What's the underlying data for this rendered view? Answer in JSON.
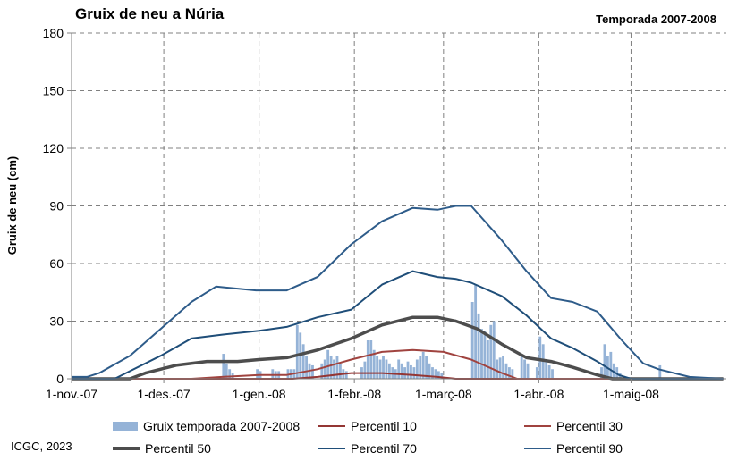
{
  "header": {
    "title": "Gruix de neu a Núria",
    "season": "Temporada 2007-2008"
  },
  "footer": {
    "credit": "ICGC, 2023"
  },
  "colors": {
    "bars": "#95B3D7",
    "p10": "#943634",
    "p30": "#A0433F",
    "p50": "#4D4D4D",
    "p70": "#1F4E79",
    "p90": "#2E5C8A",
    "grid": "#808080"
  },
  "legend": [
    {
      "key": "bars",
      "label": "Gruix temporada 2007-2008",
      "style": "bar"
    },
    {
      "key": "p10",
      "label": "Percentil 10",
      "style": "line"
    },
    {
      "key": "p30",
      "label": "Percentil 30",
      "style": "line"
    },
    {
      "key": "p50",
      "label": "Percentil 50",
      "style": "thick"
    },
    {
      "key": "p70",
      "label": "Percentil 70",
      "style": "line"
    },
    {
      "key": "p90",
      "label": "Percentil 90",
      "style": "line"
    }
  ],
  "chart_data": {
    "type": "bar",
    "title": "Gruix de neu a Núria",
    "subtitle": "Temporada 2007-2008",
    "ylabel": "Gruix de neu (cm)",
    "ylim": [
      0,
      180
    ],
    "yticks": [
      0,
      30,
      60,
      90,
      120,
      150,
      180
    ],
    "x_start": "2007-11-01",
    "x_end": "2008-05-31",
    "xticks": [
      {
        "date": "2007-11-01",
        "label": "1-nov.-07"
      },
      {
        "date": "2007-12-01",
        "label": "1-des.-07"
      },
      {
        "date": "2008-01-01",
        "label": "1-gen.-08"
      },
      {
        "date": "2008-02-01",
        "label": "1-febr.-08"
      },
      {
        "date": "2008-03-01",
        "label": "1-març-08"
      },
      {
        "date": "2008-04-01",
        "label": "1-abr.-08"
      },
      {
        "date": "2008-05-01",
        "label": "1-maig-08"
      }
    ],
    "grid": true,
    "legend_position": "bottom",
    "bar_series": {
      "name": "Gruix temporada 2007-2008",
      "points": [
        [
          "2007-12-20",
          13
        ],
        [
          "2007-12-21",
          8
        ],
        [
          "2007-12-22",
          5
        ],
        [
          "2007-12-23",
          3
        ],
        [
          "2007-12-31",
          5
        ],
        [
          "2008-01-01",
          4
        ],
        [
          "2008-01-05",
          5
        ],
        [
          "2008-01-06",
          4
        ],
        [
          "2008-01-07",
          4
        ],
        [
          "2008-01-10",
          5
        ],
        [
          "2008-01-11",
          5
        ],
        [
          "2008-01-12",
          5
        ],
        [
          "2008-01-13",
          28
        ],
        [
          "2008-01-14",
          24
        ],
        [
          "2008-01-15",
          18
        ],
        [
          "2008-01-16",
          12
        ],
        [
          "2008-01-17",
          8
        ],
        [
          "2008-01-18",
          7
        ],
        [
          "2008-01-21",
          8
        ],
        [
          "2008-01-22",
          10
        ],
        [
          "2008-01-23",
          15
        ],
        [
          "2008-01-24",
          12
        ],
        [
          "2008-01-25",
          10
        ],
        [
          "2008-01-26",
          12
        ],
        [
          "2008-01-27",
          8
        ],
        [
          "2008-01-28",
          5
        ],
        [
          "2008-01-29",
          4
        ],
        [
          "2008-02-03",
          6
        ],
        [
          "2008-02-04",
          9
        ],
        [
          "2008-02-05",
          20
        ],
        [
          "2008-02-06",
          20
        ],
        [
          "2008-02-07",
          15
        ],
        [
          "2008-02-08",
          12
        ],
        [
          "2008-02-09",
          10
        ],
        [
          "2008-02-10",
          12
        ],
        [
          "2008-02-11",
          10
        ],
        [
          "2008-02-12",
          8
        ],
        [
          "2008-02-13",
          6
        ],
        [
          "2008-02-14",
          5
        ],
        [
          "2008-02-15",
          10
        ],
        [
          "2008-02-16",
          8
        ],
        [
          "2008-02-17",
          6
        ],
        [
          "2008-02-18",
          9
        ],
        [
          "2008-02-19",
          7
        ],
        [
          "2008-02-20",
          6
        ],
        [
          "2008-02-21",
          10
        ],
        [
          "2008-02-22",
          12
        ],
        [
          "2008-02-23",
          14
        ],
        [
          "2008-02-24",
          12
        ],
        [
          "2008-02-25",
          8
        ],
        [
          "2008-02-26",
          6
        ],
        [
          "2008-02-27",
          5
        ],
        [
          "2008-02-28",
          4
        ],
        [
          "2008-02-29",
          3
        ],
        [
          "2008-03-10",
          40
        ],
        [
          "2008-03-11",
          49
        ],
        [
          "2008-03-12",
          34
        ],
        [
          "2008-03-13",
          26
        ],
        [
          "2008-03-14",
          25
        ],
        [
          "2008-03-15",
          20
        ],
        [
          "2008-03-16",
          28
        ],
        [
          "2008-03-17",
          30
        ],
        [
          "2008-03-18",
          10
        ],
        [
          "2008-03-19",
          11
        ],
        [
          "2008-03-20",
          12
        ],
        [
          "2008-03-21",
          8
        ],
        [
          "2008-03-22",
          6
        ],
        [
          "2008-03-23",
          5
        ],
        [
          "2008-03-26",
          12
        ],
        [
          "2008-03-27",
          10
        ],
        [
          "2008-03-28",
          8
        ],
        [
          "2008-03-31",
          6
        ],
        [
          "2008-04-01",
          22
        ],
        [
          "2008-04-02",
          18
        ],
        [
          "2008-04-03",
          10
        ],
        [
          "2008-04-04",
          7
        ],
        [
          "2008-04-05",
          5
        ],
        [
          "2008-04-21",
          6
        ],
        [
          "2008-04-22",
          18
        ],
        [
          "2008-04-23",
          12
        ],
        [
          "2008-04-24",
          14
        ],
        [
          "2008-04-25",
          8
        ],
        [
          "2008-04-26",
          6
        ],
        [
          "2008-04-27",
          3
        ],
        [
          "2008-05-10",
          7
        ]
      ]
    },
    "series": [
      {
        "name": "Percentil 10",
        "key": "p10",
        "points": [
          [
            "2007-11-01",
            0
          ],
          [
            "2008-01-12",
            0
          ],
          [
            "2008-01-20",
            1
          ],
          [
            "2008-01-31",
            3
          ],
          [
            "2008-02-10",
            3
          ],
          [
            "2008-02-20",
            2
          ],
          [
            "2008-02-28",
            1
          ],
          [
            "2008-03-05",
            0
          ],
          [
            "2008-05-31",
            0
          ]
        ]
      },
      {
        "name": "Percentil 30",
        "key": "p30",
        "points": [
          [
            "2007-11-01",
            0
          ],
          [
            "2007-12-10",
            0
          ],
          [
            "2007-12-20",
            1
          ],
          [
            "2008-01-01",
            2
          ],
          [
            "2008-01-10",
            2
          ],
          [
            "2008-01-20",
            5
          ],
          [
            "2008-01-31",
            10
          ],
          [
            "2008-02-10",
            14
          ],
          [
            "2008-02-20",
            15
          ],
          [
            "2008-03-01",
            14
          ],
          [
            "2008-03-10",
            10
          ],
          [
            "2008-03-20",
            3
          ],
          [
            "2008-03-25",
            0
          ],
          [
            "2008-05-31",
            0
          ]
        ]
      },
      {
        "name": "Percentil 50",
        "key": "p50",
        "points": [
          [
            "2007-11-01",
            0
          ],
          [
            "2007-11-20",
            0
          ],
          [
            "2007-11-25",
            3
          ],
          [
            "2007-12-05",
            7
          ],
          [
            "2007-12-15",
            9
          ],
          [
            "2007-12-25",
            9
          ],
          [
            "2008-01-01",
            10
          ],
          [
            "2008-01-10",
            11
          ],
          [
            "2008-01-20",
            15
          ],
          [
            "2008-01-31",
            21
          ],
          [
            "2008-02-10",
            28
          ],
          [
            "2008-02-20",
            32
          ],
          [
            "2008-02-28",
            32
          ],
          [
            "2008-03-05",
            30
          ],
          [
            "2008-03-12",
            26
          ],
          [
            "2008-03-20",
            18
          ],
          [
            "2008-03-28",
            11
          ],
          [
            "2008-04-05",
            9
          ],
          [
            "2008-04-12",
            6
          ],
          [
            "2008-04-20",
            2
          ],
          [
            "2008-04-25",
            0
          ],
          [
            "2008-05-31",
            0
          ]
        ]
      },
      {
        "name": "Percentil 70",
        "key": "p70",
        "points": [
          [
            "2007-11-01",
            0
          ],
          [
            "2007-11-15",
            0
          ],
          [
            "2007-11-20",
            4
          ],
          [
            "2007-11-30",
            12
          ],
          [
            "2007-12-10",
            21
          ],
          [
            "2007-12-20",
            23
          ],
          [
            "2008-01-01",
            25
          ],
          [
            "2008-01-10",
            27
          ],
          [
            "2008-01-20",
            32
          ],
          [
            "2008-01-31",
            36
          ],
          [
            "2008-02-10",
            49
          ],
          [
            "2008-02-20",
            56
          ],
          [
            "2008-02-28",
            53
          ],
          [
            "2008-03-05",
            52
          ],
          [
            "2008-03-10",
            50
          ],
          [
            "2008-03-20",
            43
          ],
          [
            "2008-03-28",
            33
          ],
          [
            "2008-04-05",
            21
          ],
          [
            "2008-04-12",
            16
          ],
          [
            "2008-04-20",
            9
          ],
          [
            "2008-04-27",
            2
          ],
          [
            "2008-05-01",
            0
          ],
          [
            "2008-05-31",
            0
          ]
        ]
      },
      {
        "name": "Percentil 90",
        "key": "p90",
        "points": [
          [
            "2007-11-01",
            1
          ],
          [
            "2007-11-06",
            1
          ],
          [
            "2007-11-10",
            3
          ],
          [
            "2007-11-20",
            12
          ],
          [
            "2007-11-30",
            26
          ],
          [
            "2007-12-10",
            40
          ],
          [
            "2007-12-18",
            48
          ],
          [
            "2007-12-31",
            46
          ],
          [
            "2008-01-10",
            46
          ],
          [
            "2008-01-20",
            53
          ],
          [
            "2008-01-31",
            70
          ],
          [
            "2008-02-10",
            82
          ],
          [
            "2008-02-20",
            89
          ],
          [
            "2008-02-28",
            88
          ],
          [
            "2008-03-05",
            90
          ],
          [
            "2008-03-10",
            90
          ],
          [
            "2008-03-20",
            72
          ],
          [
            "2008-03-28",
            56
          ],
          [
            "2008-04-05",
            42
          ],
          [
            "2008-04-12",
            40
          ],
          [
            "2008-04-20",
            35
          ],
          [
            "2008-04-28",
            20
          ],
          [
            "2008-05-05",
            8
          ],
          [
            "2008-05-10",
            5
          ],
          [
            "2008-05-20",
            1
          ],
          [
            "2008-05-31",
            0
          ]
        ]
      }
    ]
  }
}
